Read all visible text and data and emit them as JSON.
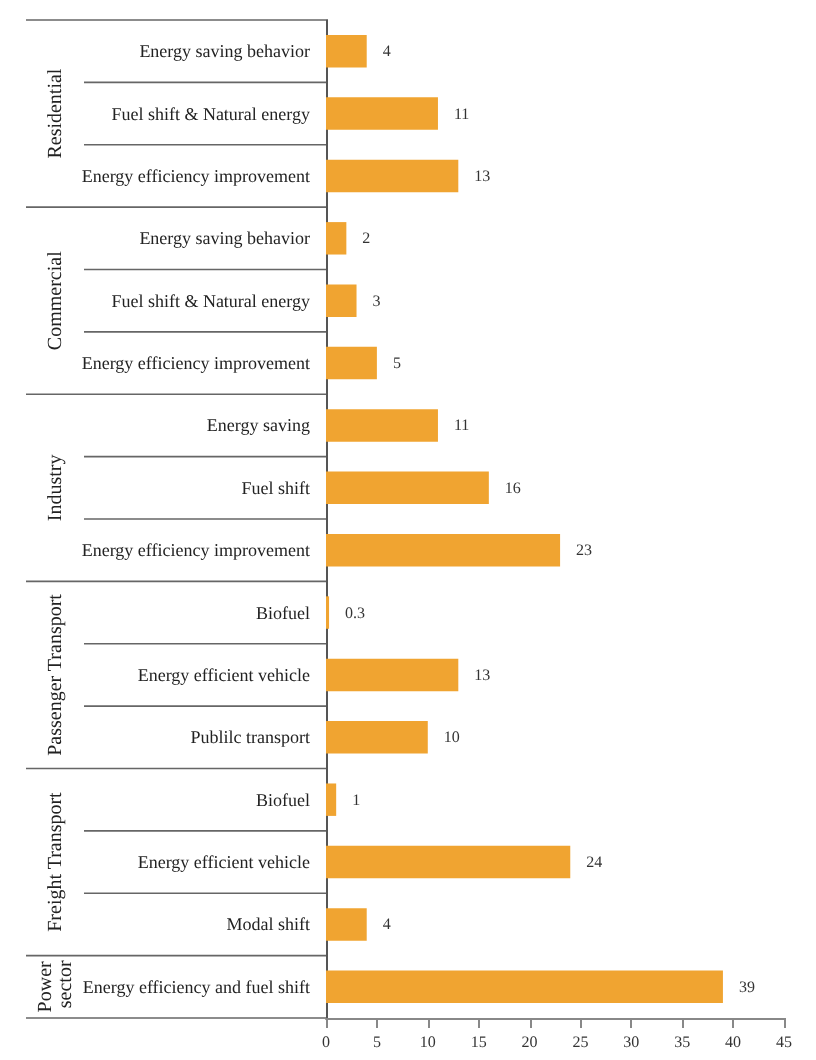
{
  "chart_data": {
    "type": "bar",
    "orientation": "horizontal",
    "categories": [
      "Energy saving behavior",
      "Fuel shift & Natural energy",
      "Energy efficiency improvement",
      "Energy saving behavior",
      "Fuel shift & Natural energy",
      "Energy efficiency improvement",
      "Energy saving",
      "Fuel shift",
      "Energy efficiency improvement",
      "Biofuel",
      "Energy efficient vehicle",
      "Publilc transport",
      "Biofuel",
      "Energy efficient vehicle",
      "Modal shift",
      "Energy efficiency and fuel shift"
    ],
    "values": [
      4,
      11,
      13,
      2,
      3,
      5,
      11,
      16,
      23,
      0.3,
      13,
      10,
      1,
      24,
      4,
      39
    ],
    "color": "#f0a431",
    "xlim": [
      0,
      45
    ],
    "xticks": [
      0,
      5,
      10,
      15,
      20,
      25,
      30,
      35,
      40,
      45
    ],
    "data_labels": true,
    "grid": false,
    "annotations": [
      "Residential",
      "Commercial",
      "Industry",
      "Passenger Transport",
      "Freight Transport",
      "Power sector"
    ]
  }
}
